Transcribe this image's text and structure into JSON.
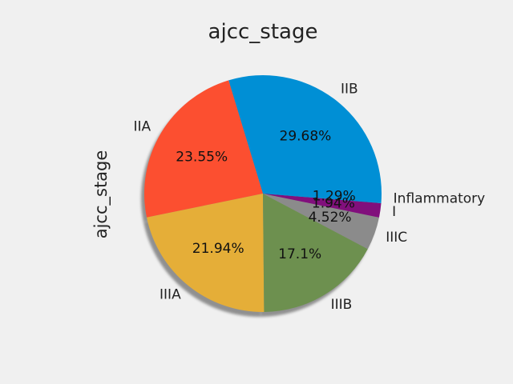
{
  "chart_data": {
    "type": "pie",
    "title": "ajcc_stage",
    "ylabel": "ajcc_stage",
    "shadow": true,
    "start_angle_deg": 0,
    "direction": "counterclockwise",
    "slices": [
      {
        "label": "IIB",
        "value": 29.68,
        "pct_text": "29.68%",
        "color": "#008fd5"
      },
      {
        "label": "IIA",
        "value": 23.55,
        "pct_text": "23.55%",
        "color": "#fc4f30"
      },
      {
        "label": "IIIA",
        "value": 21.94,
        "pct_text": "21.94%",
        "color": "#e5ae38"
      },
      {
        "label": "IIIB",
        "value": 17.1,
        "pct_text": "17.1%",
        "color": "#6d904f"
      },
      {
        "label": "IIIC",
        "value": 4.52,
        "pct_text": "4.52%",
        "color": "#8b8b8b"
      },
      {
        "label": "I",
        "value": 1.94,
        "pct_text": "1.94%",
        "color": "#810f7c"
      },
      {
        "label": "Inflammatory",
        "value": 1.29,
        "pct_text": "1.29%",
        "color": "#008fd5"
      }
    ]
  }
}
